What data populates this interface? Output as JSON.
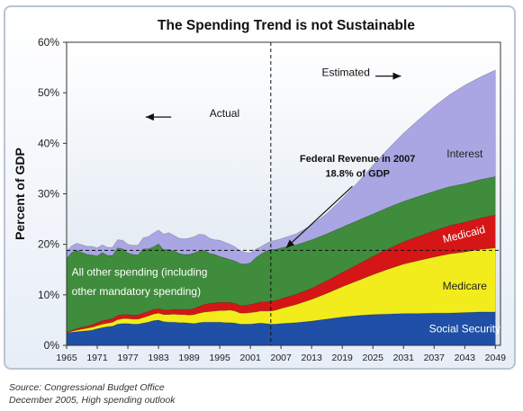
{
  "chart_data": {
    "type": "area",
    "title": "The Spending Trend is not Sustainable",
    "xlabel": "",
    "ylabel": "Percent of GDP",
    "xlim": [
      1965,
      2050
    ],
    "ylim": [
      0,
      60
    ],
    "y_ticks": [
      "0%",
      "10%",
      "20%",
      "30%",
      "40%",
      "50%",
      "60%"
    ],
    "x_ticks": [
      "1965",
      "1971",
      "1977",
      "1983",
      "1989",
      "1995",
      "2001",
      "2007",
      "2013",
      "2019",
      "2025",
      "2031",
      "2037",
      "2043",
      "2049"
    ],
    "stacked": true,
    "x": [
      1965,
      1966,
      1967,
      1968,
      1969,
      1970,
      1971,
      1972,
      1973,
      1974,
      1975,
      1976,
      1977,
      1978,
      1979,
      1980,
      1981,
      1982,
      1983,
      1984,
      1985,
      1986,
      1987,
      1988,
      1989,
      1990,
      1991,
      1992,
      1993,
      1994,
      1995,
      1996,
      1997,
      1998,
      1999,
      2000,
      2001,
      2002,
      2003,
      2004,
      2005,
      2006,
      2007,
      2010,
      2013,
      2016,
      2019,
      2022,
      2025,
      2028,
      2031,
      2034,
      2037,
      2040,
      2043,
      2046,
      2049
    ],
    "series": [
      {
        "name": "Social Security",
        "color": "#1f4fa6",
        "values": [
          2.5,
          2.6,
          2.7,
          2.8,
          2.9,
          3.0,
          3.3,
          3.5,
          3.7,
          3.8,
          4.2,
          4.3,
          4.3,
          4.2,
          4.2,
          4.4,
          4.6,
          4.9,
          5.0,
          4.7,
          4.6,
          4.6,
          4.5,
          4.5,
          4.4,
          4.3,
          4.5,
          4.6,
          4.6,
          4.6,
          4.6,
          4.5,
          4.5,
          4.4,
          4.2,
          4.2,
          4.2,
          4.3,
          4.4,
          4.3,
          4.2,
          4.2,
          4.3,
          4.5,
          4.8,
          5.2,
          5.6,
          5.9,
          6.1,
          6.2,
          6.3,
          6.3,
          6.4,
          6.4,
          6.5,
          6.6,
          6.6
        ]
      },
      {
        "name": "Medicare",
        "color": "#f2ec1d",
        "values": [
          0.0,
          0.2,
          0.3,
          0.4,
          0.5,
          0.6,
          0.6,
          0.7,
          0.7,
          0.8,
          0.9,
          1.0,
          1.0,
          1.0,
          1.0,
          1.1,
          1.2,
          1.3,
          1.4,
          1.4,
          1.5,
          1.6,
          1.6,
          1.6,
          1.6,
          1.8,
          1.9,
          2.0,
          2.1,
          2.2,
          2.3,
          2.4,
          2.5,
          2.4,
          2.2,
          2.2,
          2.3,
          2.3,
          2.4,
          2.5,
          2.6,
          2.8,
          3.0,
          3.6,
          4.3,
          5.1,
          6.0,
          6.9,
          7.9,
          8.9,
          9.8,
          10.5,
          11.1,
          11.7,
          12.0,
          12.4,
          12.7
        ]
      },
      {
        "name": "Medicaid",
        "color": "#d61616",
        "values": [
          0.1,
          0.2,
          0.3,
          0.4,
          0.4,
          0.5,
          0.6,
          0.7,
          0.7,
          0.7,
          0.8,
          0.8,
          0.8,
          0.8,
          0.8,
          0.9,
          0.9,
          0.9,
          0.9,
          0.9,
          0.9,
          0.9,
          1.0,
          1.0,
          1.1,
          1.2,
          1.3,
          1.5,
          1.6,
          1.6,
          1.6,
          1.6,
          1.5,
          1.5,
          1.5,
          1.5,
          1.6,
          1.7,
          1.8,
          1.8,
          1.9,
          1.9,
          1.9,
          2.0,
          2.2,
          2.5,
          2.8,
          3.2,
          3.6,
          4.0,
          4.4,
          4.8,
          5.2,
          5.6,
          5.9,
          6.2,
          6.5
        ]
      },
      {
        "name": "All other spending (including other mandatory spending)",
        "color": "#3f8c3c",
        "values": [
          14.6,
          15.4,
          15.5,
          14.8,
          14.2,
          13.8,
          13.2,
          13.5,
          12.7,
          12.5,
          13.4,
          13.0,
          12.2,
          12.0,
          11.9,
          12.7,
          12.4,
          12.4,
          12.8,
          11.9,
          12.0,
          11.6,
          11.1,
          10.9,
          10.9,
          11.0,
          11.0,
          10.7,
          9.9,
          9.6,
          9.1,
          8.8,
          8.5,
          8.4,
          8.3,
          8.2,
          8.2,
          9.0,
          9.4,
          10.0,
          10.3,
          10.1,
          10.1,
          9.8,
          9.6,
          9.3,
          9.0,
          8.7,
          8.4,
          8.2,
          8.0,
          7.9,
          7.8,
          7.7,
          7.6,
          7.6,
          7.6
        ]
      },
      {
        "name": "Interest",
        "color": "#aaa6e3",
        "values": [
          1.4,
          1.3,
          1.4,
          1.5,
          1.6,
          1.7,
          1.6,
          1.5,
          1.6,
          1.6,
          1.6,
          1.7,
          1.7,
          1.8,
          1.9,
          2.2,
          2.4,
          2.7,
          2.7,
          3.1,
          3.3,
          3.1,
          3.0,
          3.1,
          3.2,
          3.2,
          3.3,
          3.1,
          3.0,
          2.9,
          3.2,
          3.1,
          3.0,
          2.8,
          2.5,
          2.3,
          2.0,
          1.7,
          1.5,
          1.5,
          1.6,
          1.8,
          1.8,
          2.2,
          2.9,
          4.0,
          5.6,
          7.5,
          9.6,
          11.6,
          13.5,
          15.2,
          16.8,
          18.2,
          19.5,
          20.3,
          21.1
        ]
      }
    ],
    "area_labels": [
      {
        "text": "Interest",
        "x": 2043,
        "y": 37.2,
        "color": "#222222",
        "anchor": "middle"
      },
      {
        "text": "Medicaid",
        "x": 2043,
        "y": 21.3,
        "color": "#ffffff",
        "anchor": "middle",
        "rotate": -14
      },
      {
        "text": "Medicare",
        "x": 2043,
        "y": 11.0,
        "color": "#222222",
        "anchor": "middle"
      },
      {
        "text": "Social Security",
        "x": 2043,
        "y": 2.6,
        "color": "#ffffff",
        "anchor": "middle"
      },
      {
        "text": "All other spending (including",
        "x": 1966,
        "y": 13.8,
        "color": "#ffffff",
        "anchor": "start"
      },
      {
        "text": "other mandatory spending)",
        "x": 1966,
        "y": 10.0,
        "color": "#ffffff",
        "anchor": "start"
      }
    ],
    "reference_lines": {
      "horizontal_y": 18.8,
      "vertical_x": 2005
    },
    "annotations": [
      {
        "text": "Estimated",
        "x": 2015,
        "y": 53.3
      },
      {
        "text": "Actual",
        "x": 1993,
        "y": 45.2
      },
      {
        "text": "Federal Revenue in 2007",
        "x": 2022,
        "y": 36.3
      },
      {
        "text": "18.8% of GDP",
        "x": 2022,
        "y": 33.4
      }
    ],
    "arrows": [
      {
        "from": [
          2025.5,
          53.3
        ],
        "to": [
          2030.5,
          53.3
        ]
      },
      {
        "from": [
          1985.5,
          45.2
        ],
        "to": [
          1980.5,
          45.2
        ]
      },
      {
        "from": [
          2021,
          31.5
        ],
        "to": [
          2008,
          19.3
        ]
      }
    ]
  },
  "source": {
    "line1": "Source: Congressional Budget Office",
    "line2": "December 2005, High spending outlook"
  }
}
